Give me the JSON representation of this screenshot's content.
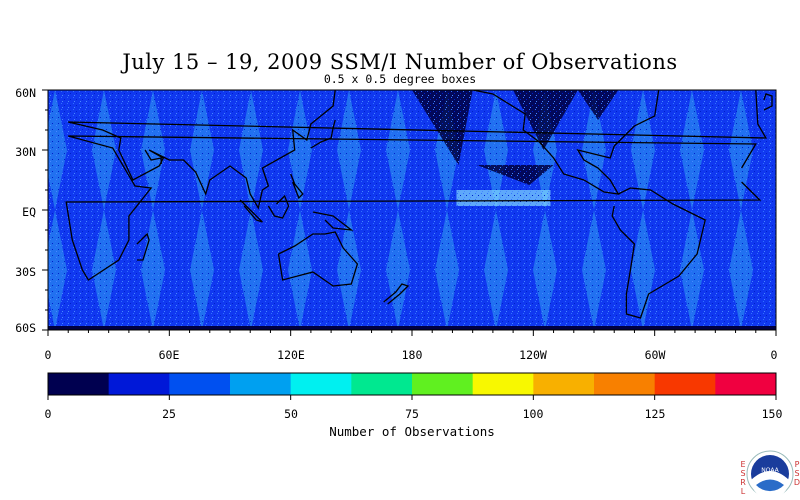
{
  "title": "July 15 – 19, 2009 SSM/I Number of Observations",
  "subtitle": "0.5 x 0.5 degree boxes",
  "lat_labels": [
    "60N",
    "30N",
    "EQ",
    "30S",
    "60S"
  ],
  "lon_labels": [
    "0",
    "60E",
    "120E",
    "180",
    "120W",
    "60W",
    "0"
  ],
  "colorbar": {
    "labels": [
      "0",
      "25",
      "50",
      "75",
      "100",
      "125",
      "150"
    ],
    "title": "Number of Observations",
    "colors": [
      "#000050",
      "#0018d8",
      "#0050f0",
      "#00a0f0",
      "#00f0f0",
      "#00e890",
      "#60f020",
      "#f8f800",
      "#f8b000",
      "#f88000",
      "#f83800",
      "#f00040"
    ]
  },
  "map": {
    "ocean_color": "#1038f0",
    "swath_color": "#30a0f0",
    "land_color": "#0028e0",
    "coastline_color": "#000000",
    "dark_color": "#000040"
  },
  "logo": {
    "left_letters": "E\nS\nR\nL",
    "right_letters": "P\nS\nD",
    "emblem_text": "NOAA"
  }
}
